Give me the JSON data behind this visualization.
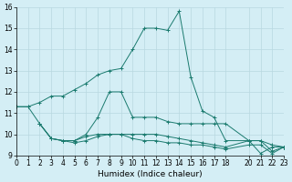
{
  "xlabel": "Humidex (Indice chaleur)",
  "bg_color": "#d4eef5",
  "line_color": "#1a7a6e",
  "grid_color": "#b8d8e0",
  "xlim": [
    0,
    23
  ],
  "ylim": [
    9,
    16
  ],
  "yticks": [
    9,
    10,
    11,
    12,
    13,
    14,
    15,
    16
  ],
  "xticks": [
    0,
    1,
    2,
    3,
    4,
    5,
    6,
    7,
    8,
    9,
    10,
    11,
    12,
    13,
    14,
    15,
    16,
    17,
    18,
    20,
    21,
    22,
    23
  ],
  "lines": [
    {
      "x": [
        0,
        1,
        2,
        3,
        4,
        5,
        6,
        7,
        8,
        9,
        10,
        11,
        12,
        13,
        14,
        15,
        16,
        17,
        18,
        20,
        21,
        22,
        23
      ],
      "y": [
        11.3,
        11.3,
        11.5,
        11.8,
        11.8,
        12.1,
        12.4,
        12.8,
        13.0,
        13.1,
        14.0,
        15.0,
        15.0,
        14.9,
        15.8,
        12.7,
        11.1,
        10.8,
        9.7,
        9.7,
        9.1,
        9.4,
        9.4
      ]
    },
    {
      "x": [
        0,
        1,
        2,
        3,
        4,
        5,
        6,
        7,
        8,
        9,
        10,
        11,
        12,
        13,
        14,
        15,
        16,
        17,
        18,
        20,
        21,
        22,
        23
      ],
      "y": [
        11.3,
        11.3,
        10.5,
        9.8,
        9.7,
        9.7,
        10.0,
        10.8,
        12.0,
        12.0,
        10.8,
        10.8,
        10.8,
        10.6,
        10.5,
        10.5,
        10.5,
        10.5,
        10.5,
        9.7,
        9.7,
        9.5,
        9.4
      ]
    },
    {
      "x": [
        2,
        3,
        4,
        5,
        6,
        7,
        8,
        9,
        10,
        11,
        12,
        13,
        14,
        15,
        16,
        17,
        18,
        20,
        21,
        22,
        23
      ],
      "y": [
        10.5,
        9.8,
        9.7,
        9.7,
        9.9,
        10.0,
        10.0,
        10.0,
        10.0,
        10.0,
        10.0,
        9.9,
        9.8,
        9.7,
        9.6,
        9.5,
        9.4,
        9.7,
        9.7,
        9.2,
        9.4
      ]
    },
    {
      "x": [
        2,
        3,
        4,
        5,
        6,
        7,
        8,
        9,
        10,
        11,
        12,
        13,
        14,
        15,
        16,
        17,
        18,
        20,
        21,
        22,
        23
      ],
      "y": [
        10.5,
        9.8,
        9.7,
        9.6,
        9.7,
        9.9,
        10.0,
        10.0,
        9.8,
        9.7,
        9.7,
        9.6,
        9.6,
        9.5,
        9.5,
        9.4,
        9.3,
        9.5,
        9.5,
        9.1,
        9.4
      ]
    }
  ]
}
